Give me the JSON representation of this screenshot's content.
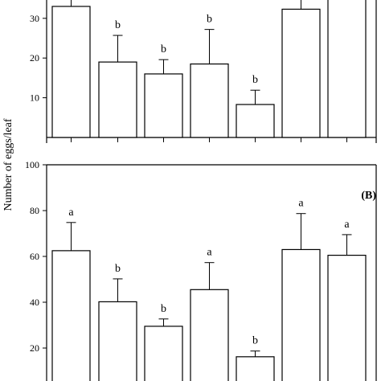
{
  "figure": {
    "y_axis_label": "Number of eggs/leaf"
  },
  "chart_data": [
    {
      "type": "bar",
      "panel_label": "",
      "values": [
        33,
        19,
        16,
        18.5,
        8.3,
        32.3,
        36
      ],
      "errors": [
        5,
        6.7,
        3.6,
        8.7,
        3.6,
        4,
        4
      ],
      "letters": [
        "",
        "b",
        "b",
        "b",
        "b",
        "",
        ""
      ],
      "yticks": [
        10,
        20,
        30
      ],
      "ylim": [
        0,
        38
      ],
      "visible_range": [
        -1.2,
        38
      ]
    },
    {
      "type": "bar",
      "panel_label": "(B)",
      "values": [
        62.5,
        40.2,
        29.5,
        45.5,
        16.2,
        63,
        60.5
      ],
      "errors": [
        12.3,
        10,
        3.2,
        11.8,
        2.5,
        15.7,
        9
      ],
      "letters": [
        "a",
        "b",
        "b",
        "a",
        "b",
        "a",
        "a"
      ],
      "yticks": [
        20,
        40,
        60,
        80,
        100
      ],
      "ylim": [
        0,
        100
      ],
      "visible_range": [
        3.5,
        100
      ]
    }
  ]
}
